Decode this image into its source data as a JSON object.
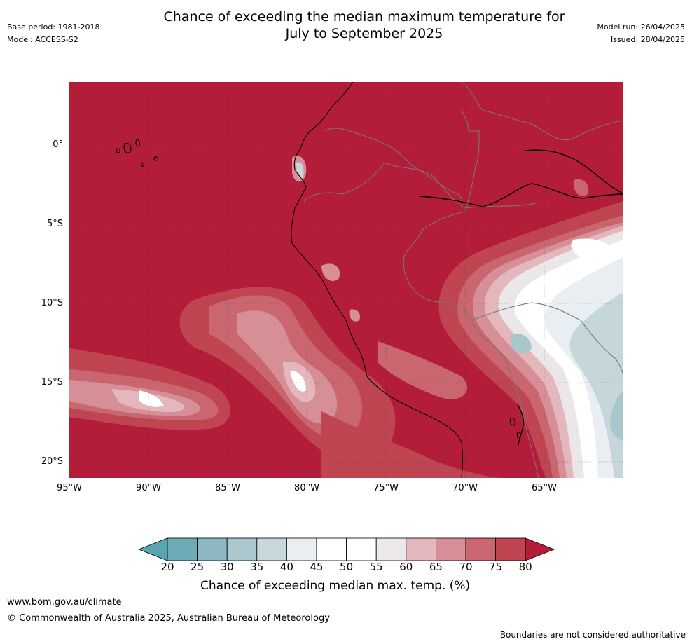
{
  "header": {
    "title_line1": "Chance of exceeding the median maximum temperature for",
    "title_line2": "July to September 2025",
    "base_period": "Base period: 1981-2018",
    "model": "Model: ACCESS-S2",
    "model_run": "Model run: 26/04/2025",
    "issued": "Issued: 28/04/2025"
  },
  "map": {
    "lat_ticks": [
      "0°",
      "5°S",
      "10°S",
      "15°S",
      "20°S"
    ],
    "lon_ticks": [
      "95°W",
      "90°W",
      "85°W",
      "80°W",
      "75°W",
      "70°W",
      "65°W"
    ],
    "colors": {
      "ocean_high": "#b31d3a",
      "c75": "#bf4552",
      "c70": "#c9666f",
      "c65": "#d68f96",
      "c60": "#e3b7bb",
      "c55": "#ebe7e8",
      "c50": "#ffffff",
      "c40": "#e8eef1",
      "c35": "#c6d7dc",
      "c30": "#a9c6cd",
      "c25": "#8db5c1",
      "coast": "#000000",
      "border": "#777777"
    }
  },
  "colorbar": {
    "labels": [
      "20",
      "25",
      "30",
      "35",
      "40",
      "45",
      "50",
      "55",
      "60",
      "65",
      "70",
      "75",
      "80"
    ],
    "colors": [
      "#58a4b0",
      "#6dabb7",
      "#8db7c3",
      "#aac8ce",
      "#c7d8dd",
      "#e8eef1",
      "#ffffff",
      "#ffffff",
      "#ece8e9",
      "#e3b7bb",
      "#d68f96",
      "#c9666f",
      "#bf4552",
      "#b31d3a"
    ],
    "title": "Chance of exceeding median max. temp. (%)"
  },
  "footer": {
    "url": "www.bom.gov.au/climate",
    "copyright": "© Commonwealth of Australia 2025, Australian Bureau of Meteorology",
    "boundaries_note": "Boundaries are not considered authoritative"
  }
}
